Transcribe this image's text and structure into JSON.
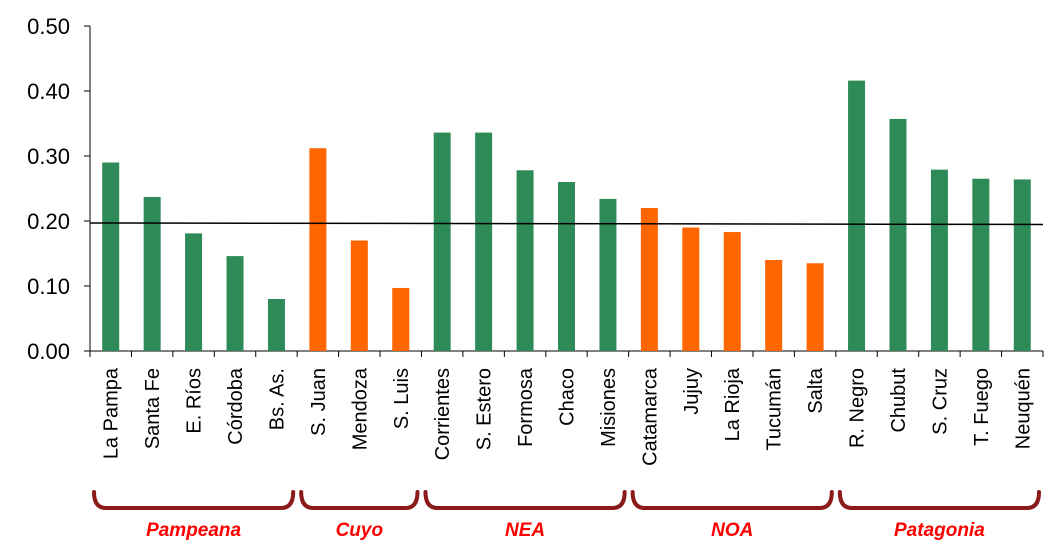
{
  "chart_data": {
    "type": "bar",
    "categories": [
      "La Pampa",
      "Santa Fe",
      "E. Ríos",
      "Córdoba",
      "Bs. As.",
      "S. Juan",
      "Mendoza",
      "S. Luis",
      "Corrientes",
      "S. Estero",
      "Formosa",
      "Chaco",
      "Misiones",
      "Catamarca",
      "Jujuy",
      "La Rioja",
      "Tucumán",
      "Salta",
      "R. Negro",
      "Chubut",
      "S. Cruz",
      "T. Fuego",
      "Neuquén"
    ],
    "values": [
      0.29,
      0.237,
      0.181,
      0.146,
      0.08,
      0.312,
      0.17,
      0.097,
      0.336,
      0.336,
      0.278,
      0.26,
      0.234,
      0.22,
      0.19,
      0.183,
      0.14,
      0.135,
      0.416,
      0.357,
      0.279,
      0.265,
      0.264
    ],
    "bar_colors": [
      "#2e8b57",
      "#2e8b57",
      "#2e8b57",
      "#2e8b57",
      "#2e8b57",
      "#ff6600",
      "#ff6600",
      "#ff6600",
      "#2e8b57",
      "#2e8b57",
      "#2e8b57",
      "#2e8b57",
      "#2e8b57",
      "#ff6600",
      "#ff6600",
      "#ff6600",
      "#ff6600",
      "#ff6600",
      "#2e8b57",
      "#2e8b57",
      "#2e8b57",
      "#2e8b57",
      "#2e8b57"
    ],
    "ylim": [
      0,
      0.5
    ],
    "yticks": [
      "0.00",
      "0.10",
      "0.20",
      "0.30",
      "0.40",
      "0.50"
    ],
    "reference_line": 0.197,
    "groups": [
      {
        "label": "Pampeana",
        "from": 0,
        "to": 4
      },
      {
        "label": "Cuyo",
        "from": 5,
        "to": 7
      },
      {
        "label": "NEA",
        "from": 8,
        "to": 12
      },
      {
        "label": "NOA",
        "from": 13,
        "to": 17
      },
      {
        "label": "Patagonia",
        "from": 18,
        "to": 22
      }
    ],
    "xlabel": "",
    "ylabel": "",
    "title": "",
    "grid": false
  },
  "colors": {
    "green": "#2e8b57",
    "orange": "#ff6600",
    "bracket": "#8b1a1a",
    "group_label": "#ff0000"
  }
}
